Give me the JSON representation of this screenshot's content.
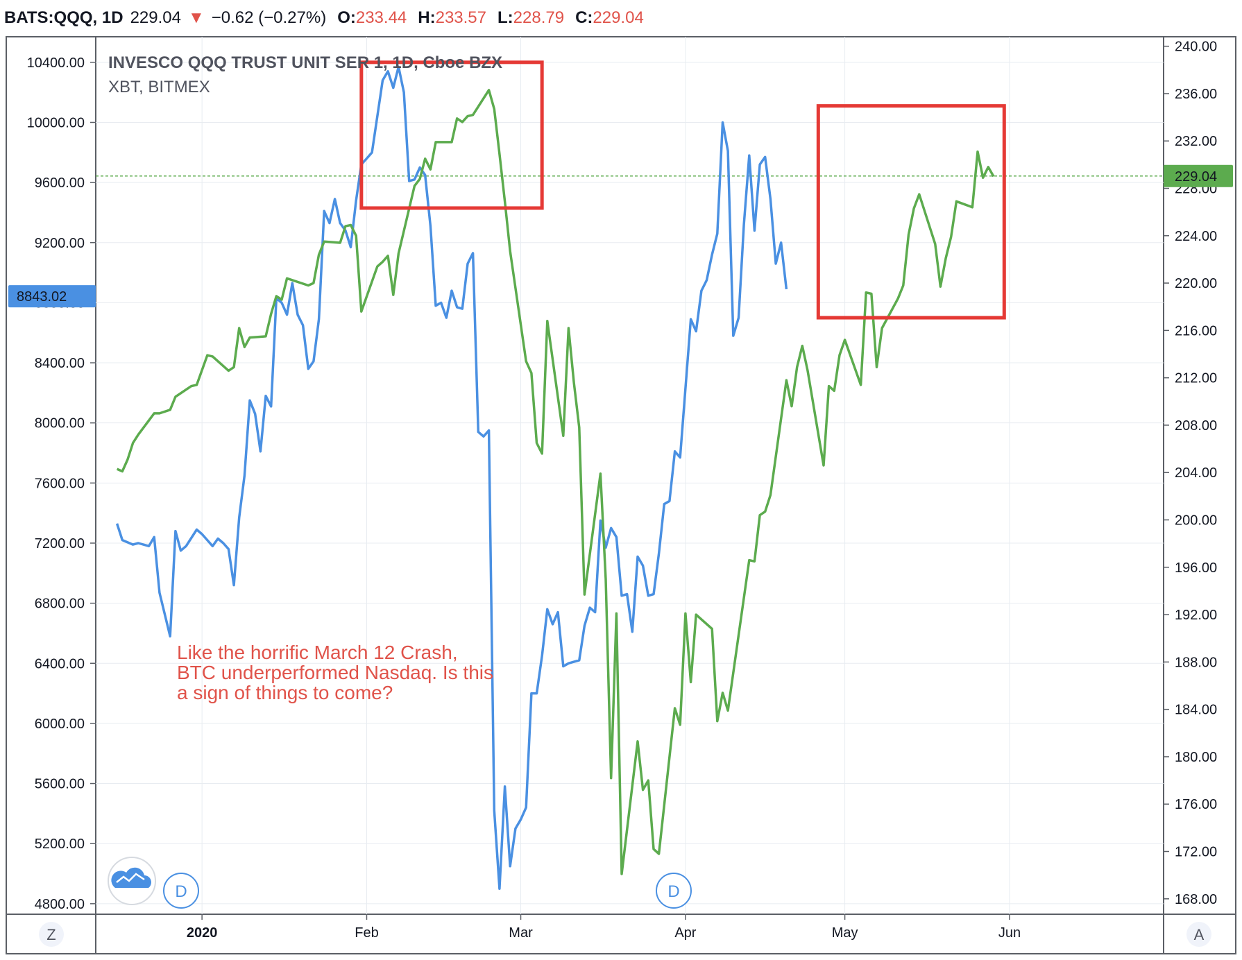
{
  "header": {
    "symbol": "BATS:QQQ, 1D",
    "price": "229.04",
    "arrow": "▼",
    "change": "−0.62 (−0.27%)",
    "o_label": "O:",
    "o_value": "233.44",
    "h_label": "H:",
    "h_value": "233.57",
    "l_label": "L:",
    "l_value": "228.79",
    "c_label": "C:",
    "c_value": "229.04"
  },
  "legend": {
    "main": "INVESCO QQQ TRUST UNIT SER 1, 1D, Cboe BZX",
    "compare": "XBT, BITMEX"
  },
  "annotation": {
    "lines": [
      "Like the horrific March 12 Crash,",
      "BTC underperformed Nasdaq. Is this",
      "a sign of things to come?"
    ],
    "color": "#e0534a"
  },
  "price_labels": {
    "left": "8843.02",
    "right": "229.04"
  },
  "buttons": {
    "z": "Z",
    "a": "A",
    "d": "D"
  },
  "colors": {
    "btc": "#4a90e2",
    "qqq": "#5cab4e",
    "box": "#e53935",
    "grid": "#e8ecf1",
    "frame": "#5b5f66"
  },
  "chart_data": {
    "type": "line",
    "x_ticks": [
      "2020",
      "Feb",
      "Mar",
      "Apr",
      "May",
      "Jun"
    ],
    "left_axis": {
      "ticks": [
        "10400.00",
        "10000.00",
        "9600.00",
        "9200.00",
        "8800.00",
        "8400.00",
        "8000.00",
        "7600.00",
        "7200.00",
        "6800.00",
        "6400.00",
        "6000.00",
        "5600.00",
        "5200.00",
        "4800.00"
      ],
      "ylim": [
        4730,
        10570
      ]
    },
    "right_axis": {
      "ticks": [
        "240.00",
        "236.00",
        "232.00",
        "228.00",
        "224.00",
        "220.00",
        "216.00",
        "212.00",
        "208.00",
        "204.00",
        "200.00",
        "196.00",
        "192.00",
        "188.00",
        "184.00",
        "180.00",
        "176.00",
        "172.00",
        "168.00"
      ],
      "ylim": [
        166.7,
        240.8
      ]
    },
    "x_range": [
      "2019-12-12",
      "2020-06-30"
    ],
    "reference_line": 229.04,
    "series": [
      {
        "name": "XBT, BITMEX",
        "axis": "left",
        "color": "#4a90e2",
        "points": [
          [
            "2019-12-16",
            7330
          ],
          [
            "2019-12-17",
            7220
          ],
          [
            "2019-12-19",
            7190
          ],
          [
            "2019-12-20",
            7200
          ],
          [
            "2019-12-22",
            7180
          ],
          [
            "2019-12-23",
            7240
          ],
          [
            "2019-12-24",
            6870
          ],
          [
            "2019-12-26",
            6580
          ],
          [
            "2019-12-27",
            7280
          ],
          [
            "2019-12-28",
            7150
          ],
          [
            "2019-12-29",
            7180
          ],
          [
            "2019-12-31",
            7290
          ],
          [
            "2020-01-01",
            7260
          ],
          [
            "2020-01-03",
            7180
          ],
          [
            "2020-01-04",
            7230
          ],
          [
            "2020-01-05",
            7200
          ],
          [
            "2020-01-06",
            7160
          ],
          [
            "2020-01-07",
            6920
          ],
          [
            "2020-01-08",
            7370
          ],
          [
            "2020-01-09",
            7650
          ],
          [
            "2020-01-10",
            8150
          ],
          [
            "2020-01-11",
            8060
          ],
          [
            "2020-01-12",
            7810
          ],
          [
            "2020-01-13",
            8180
          ],
          [
            "2020-01-14",
            8110
          ],
          [
            "2020-01-15",
            8830
          ],
          [
            "2020-01-16",
            8800
          ],
          [
            "2020-01-17",
            8720
          ],
          [
            "2020-01-18",
            8930
          ],
          [
            "2020-01-19",
            8720
          ],
          [
            "2020-01-20",
            8650
          ],
          [
            "2020-01-21",
            8360
          ],
          [
            "2020-01-22",
            8410
          ],
          [
            "2020-01-23",
            8690
          ],
          [
            "2020-01-24",
            9410
          ],
          [
            "2020-01-25",
            9330
          ],
          [
            "2020-01-26",
            9490
          ],
          [
            "2020-01-27",
            9330
          ],
          [
            "2020-01-28",
            9280
          ],
          [
            "2020-01-29",
            9170
          ],
          [
            "2020-01-30",
            9480
          ],
          [
            "2020-01-31",
            9720
          ],
          [
            "2020-02-01",
            9760
          ],
          [
            "2020-02-02",
            9800
          ],
          [
            "2020-02-04",
            10280
          ],
          [
            "2020-02-05",
            10340
          ],
          [
            "2020-02-06",
            10230
          ],
          [
            "2020-02-07",
            10370
          ],
          [
            "2020-02-08",
            10200
          ],
          [
            "2020-02-09",
            9610
          ],
          [
            "2020-02-10",
            9620
          ],
          [
            "2020-02-11",
            9700
          ],
          [
            "2020-02-12",
            9650
          ],
          [
            "2020-02-13",
            9310
          ],
          [
            "2020-02-14",
            8780
          ],
          [
            "2020-02-15",
            8800
          ],
          [
            "2020-02-16",
            8700
          ],
          [
            "2020-02-17",
            8880
          ],
          [
            "2020-02-18",
            8770
          ],
          [
            "2020-02-19",
            8760
          ],
          [
            "2020-02-20",
            9060
          ],
          [
            "2020-02-21",
            9130
          ],
          [
            "2020-02-22",
            7940
          ],
          [
            "2020-02-23",
            7910
          ],
          [
            "2020-02-24",
            7950
          ],
          [
            "2020-02-25",
            5420
          ],
          [
            "2020-02-26",
            4900
          ],
          [
            "2020-02-27",
            5580
          ],
          [
            "2020-02-28",
            5050
          ],
          [
            "2020-02-29",
            5300
          ],
          [
            "2020-03-01",
            5360
          ],
          [
            "2020-03-02",
            5440
          ],
          [
            "2020-03-03",
            6200
          ],
          [
            "2020-03-04",
            6200
          ],
          [
            "2020-03-05",
            6450
          ],
          [
            "2020-03-06",
            6760
          ],
          [
            "2020-03-07",
            6660
          ],
          [
            "2020-03-08",
            6740
          ],
          [
            "2020-03-09",
            6380
          ],
          [
            "2020-03-10",
            6400
          ],
          [
            "2020-03-11",
            6410
          ],
          [
            "2020-03-12",
            6420
          ],
          [
            "2020-03-13",
            6650
          ],
          [
            "2020-03-14",
            6770
          ],
          [
            "2020-03-15",
            6740
          ],
          [
            "2020-03-16",
            7350
          ],
          [
            "2020-03-17",
            7170
          ],
          [
            "2020-03-18",
            7300
          ],
          [
            "2020-03-19",
            7240
          ],
          [
            "2020-03-20",
            6850
          ],
          [
            "2020-03-21",
            6860
          ],
          [
            "2020-03-22",
            6610
          ],
          [
            "2020-03-23",
            7110
          ],
          [
            "2020-03-24",
            7050
          ],
          [
            "2020-03-25",
            6850
          ],
          [
            "2020-03-26",
            6860
          ],
          [
            "2020-03-27",
            7130
          ],
          [
            "2020-03-28",
            7460
          ],
          [
            "2020-03-29",
            7480
          ],
          [
            "2020-03-30",
            7810
          ],
          [
            "2020-03-31",
            7770
          ],
          [
            "2020-04-02",
            8690
          ],
          [
            "2020-04-03",
            8610
          ],
          [
            "2020-04-04",
            8880
          ],
          [
            "2020-04-05",
            8950
          ],
          [
            "2020-04-06",
            9120
          ],
          [
            "2020-04-07",
            9260
          ],
          [
            "2020-04-08",
            10000
          ],
          [
            "2020-04-09",
            9810
          ],
          [
            "2020-04-10",
            8580
          ],
          [
            "2020-04-11",
            8700
          ],
          [
            "2020-04-12",
            9320
          ],
          [
            "2020-04-13",
            9780
          ],
          [
            "2020-04-14",
            9280
          ],
          [
            "2020-04-15",
            9720
          ],
          [
            "2020-04-16",
            9770
          ],
          [
            "2020-04-17",
            9490
          ],
          [
            "2020-04-18",
            9060
          ],
          [
            "2020-04-19",
            9200
          ],
          [
            "2020-04-20",
            8890
          ]
        ]
      },
      {
        "name": "INVESCO QQQ TRUST UNIT SER 1",
        "axis": "right",
        "color": "#5cab4e",
        "points": [
          [
            "2019-12-16",
            204.3
          ],
          [
            "2019-12-17",
            204.1
          ],
          [
            "2019-12-18",
            205.1
          ],
          [
            "2019-12-19",
            206.5
          ],
          [
            "2019-12-20",
            207.2
          ],
          [
            "2019-12-23",
            209.0
          ],
          [
            "2019-12-24",
            209.0
          ],
          [
            "2019-12-26",
            209.3
          ],
          [
            "2019-12-27",
            210.4
          ],
          [
            "2019-12-30",
            211.3
          ],
          [
            "2019-12-31",
            211.4
          ],
          [
            "2020-01-02",
            213.9
          ],
          [
            "2020-01-03",
            213.8
          ],
          [
            "2020-01-06",
            212.6
          ],
          [
            "2020-01-07",
            212.9
          ],
          [
            "2020-01-08",
            216.2
          ],
          [
            "2020-01-09",
            214.6
          ],
          [
            "2020-01-10",
            215.4
          ],
          [
            "2020-01-13",
            215.5
          ],
          [
            "2020-01-14",
            217.4
          ],
          [
            "2020-01-15",
            218.9
          ],
          [
            "2020-01-16",
            218.6
          ],
          [
            "2020-01-17",
            220.4
          ],
          [
            "2020-01-21",
            219.8
          ],
          [
            "2020-01-22",
            220.0
          ],
          [
            "2020-01-23",
            222.4
          ],
          [
            "2020-01-24",
            223.5
          ],
          [
            "2020-01-27",
            223.4
          ],
          [
            "2020-01-28",
            224.8
          ],
          [
            "2020-01-29",
            224.9
          ],
          [
            "2020-01-30",
            224.0
          ],
          [
            "2020-01-31",
            217.6
          ],
          [
            "2020-02-03",
            221.4
          ],
          [
            "2020-02-04",
            221.8
          ],
          [
            "2020-02-05",
            222.3
          ],
          [
            "2020-02-06",
            219.0
          ],
          [
            "2020-02-07",
            222.5
          ],
          [
            "2020-02-10",
            228.2
          ],
          [
            "2020-02-11",
            228.8
          ],
          [
            "2020-02-12",
            230.5
          ],
          [
            "2020-02-13",
            229.6
          ],
          [
            "2020-02-14",
            231.9
          ],
          [
            "2020-02-17",
            231.9
          ],
          [
            "2020-02-18",
            233.9
          ],
          [
            "2020-02-19",
            233.6
          ],
          [
            "2020-02-20",
            234.1
          ],
          [
            "2020-02-21",
            234.2
          ],
          [
            "2020-02-24",
            236.3
          ],
          [
            "2020-02-25",
            234.7
          ],
          [
            "2020-02-26",
            230.9
          ],
          [
            "2020-02-27",
            226.9
          ],
          [
            "2020-02-28",
            222.7
          ],
          [
            "2020-03-02",
            213.4
          ],
          [
            "2020-03-03",
            212.4
          ],
          [
            "2020-03-04",
            206.5
          ],
          [
            "2020-03-05",
            205.6
          ],
          [
            "2020-03-06",
            216.8
          ],
          [
            "2020-03-09",
            207.1
          ],
          [
            "2020-03-10",
            216.2
          ],
          [
            "2020-03-11",
            211.6
          ],
          [
            "2020-03-12",
            207.8
          ],
          [
            "2020-03-13",
            193.7
          ],
          [
            "2020-03-16",
            203.9
          ],
          [
            "2020-03-17",
            195.0
          ],
          [
            "2020-03-18",
            178.2
          ],
          [
            "2020-03-19",
            192.1
          ],
          [
            "2020-03-20",
            170.1
          ],
          [
            "2020-03-23",
            181.3
          ],
          [
            "2020-03-24",
            177.2
          ],
          [
            "2020-03-25",
            178.0
          ],
          [
            "2020-03-26",
            172.2
          ],
          [
            "2020-03-27",
            171.8
          ],
          [
            "2020-03-30",
            184.1
          ],
          [
            "2020-03-31",
            182.7
          ],
          [
            "2020-04-01",
            192.1
          ],
          [
            "2020-04-02",
            186.3
          ],
          [
            "2020-04-03",
            192.0
          ],
          [
            "2020-04-06",
            190.8
          ],
          [
            "2020-04-07",
            183.0
          ],
          [
            "2020-04-08",
            185.4
          ],
          [
            "2020-04-09",
            183.9
          ],
          [
            "2020-04-13",
            196.6
          ],
          [
            "2020-04-14",
            196.5
          ],
          [
            "2020-04-15",
            200.4
          ],
          [
            "2020-04-16",
            200.7
          ],
          [
            "2020-04-17",
            202.1
          ],
          [
            "2020-04-20",
            211.8
          ],
          [
            "2020-04-21",
            209.6
          ],
          [
            "2020-04-22",
            212.9
          ],
          [
            "2020-04-23",
            214.7
          ],
          [
            "2020-04-24",
            212.6
          ],
          [
            "2020-04-27",
            204.6
          ],
          [
            "2020-04-28",
            211.3
          ],
          [
            "2020-04-29",
            210.9
          ],
          [
            "2020-04-30",
            213.9
          ],
          [
            "2020-05-01",
            215.2
          ],
          [
            "2020-05-04",
            211.4
          ],
          [
            "2020-05-05",
            219.2
          ],
          [
            "2020-05-06",
            219.1
          ],
          [
            "2020-05-07",
            212.9
          ],
          [
            "2020-05-08",
            216.2
          ],
          [
            "2020-05-11",
            218.7
          ],
          [
            "2020-05-12",
            219.8
          ],
          [
            "2020-05-13",
            224.1
          ],
          [
            "2020-05-14",
            226.3
          ],
          [
            "2020-05-15",
            227.5
          ],
          [
            "2020-05-18",
            223.3
          ],
          [
            "2020-05-19",
            219.7
          ],
          [
            "2020-05-20",
            222.1
          ],
          [
            "2020-05-21",
            223.9
          ],
          [
            "2020-05-22",
            226.9
          ],
          [
            "2020-05-25",
            226.4
          ],
          [
            "2020-05-26",
            231.1
          ],
          [
            "2020-05-27",
            228.9
          ],
          [
            "2020-05-28",
            229.8
          ],
          [
            "2020-05-29",
            229.0
          ]
        ]
      }
    ],
    "highlight_boxes": [
      {
        "from": "2020-01-31",
        "to": "2020-03-05",
        "y_from": 9430,
        "y_to": 10400
      },
      {
        "from": "2020-04-26",
        "to": "2020-05-31",
        "y_from": 8700,
        "y_to": 10110
      }
    ]
  }
}
